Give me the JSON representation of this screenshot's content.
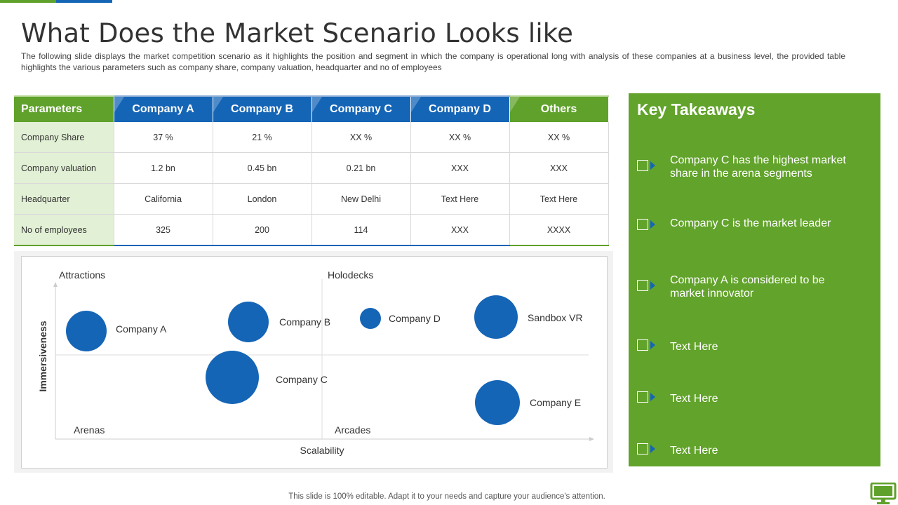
{
  "title": "What Does the Market Scenario Looks like",
  "subtitle": "The following  slide displays the market  competition scenario as it highlights the position and  segment in which the company is operational  long with analysis of these companies at a business level,  the provided  table highlights the various  parameters  such as company share,  company valuation,  headquarter  and no of employees",
  "table": {
    "headers": [
      "Parameters",
      "Company A",
      "Company B",
      "Company C",
      "Company D",
      "Others"
    ],
    "rows": [
      [
        "Company Share",
        "37 %",
        "21 %",
        "XX  %",
        "XX  %",
        "XX  %"
      ],
      [
        "Company valuation",
        "1.2 bn",
        "0.45 bn",
        "0.21 bn",
        "XXX",
        "XXX"
      ],
      [
        "Headquarter",
        "California",
        "London",
        "New Delhi",
        "Text Here",
        "Text Here"
      ],
      [
        "No of employees",
        "325",
        "200",
        "114",
        "XXX",
        "XXXX"
      ]
    ]
  },
  "chart": {
    "quadrants": {
      "top_left": "Attractions",
      "top_right": "Holodecks",
      "bottom_left": "Arenas",
      "bottom_right": "Arcades"
    },
    "x_axis": "Scalability",
    "y_axis": "Immersiveness",
    "bubble_color": "#1565b6",
    "bubbles": [
      {
        "label": "Company A"
      },
      {
        "label": "Company B"
      },
      {
        "label": "Company C"
      },
      {
        "label": "Company D"
      },
      {
        "label": "Sandbox VR"
      },
      {
        "label": "Company E"
      }
    ]
  },
  "takeaways": {
    "title": "Key  Takeaways",
    "items": [
      "Company C has the highest market share in the arena segments",
      "Company C is the market leader",
      "Company A is considered to be market innovator",
      "Text Here",
      "Text Here",
      "Text Here"
    ]
  },
  "footer": "This slide is 100% editable. Adapt it to your needs and capture your audience's attention.",
  "colors": {
    "accent_green": "#5fa12a",
    "accent_blue": "#1565b6",
    "param_bg": "#e2f0d5"
  },
  "icons": {
    "checkbox": "checkbox-arrow-icon",
    "footer": "monitor-icon"
  }
}
